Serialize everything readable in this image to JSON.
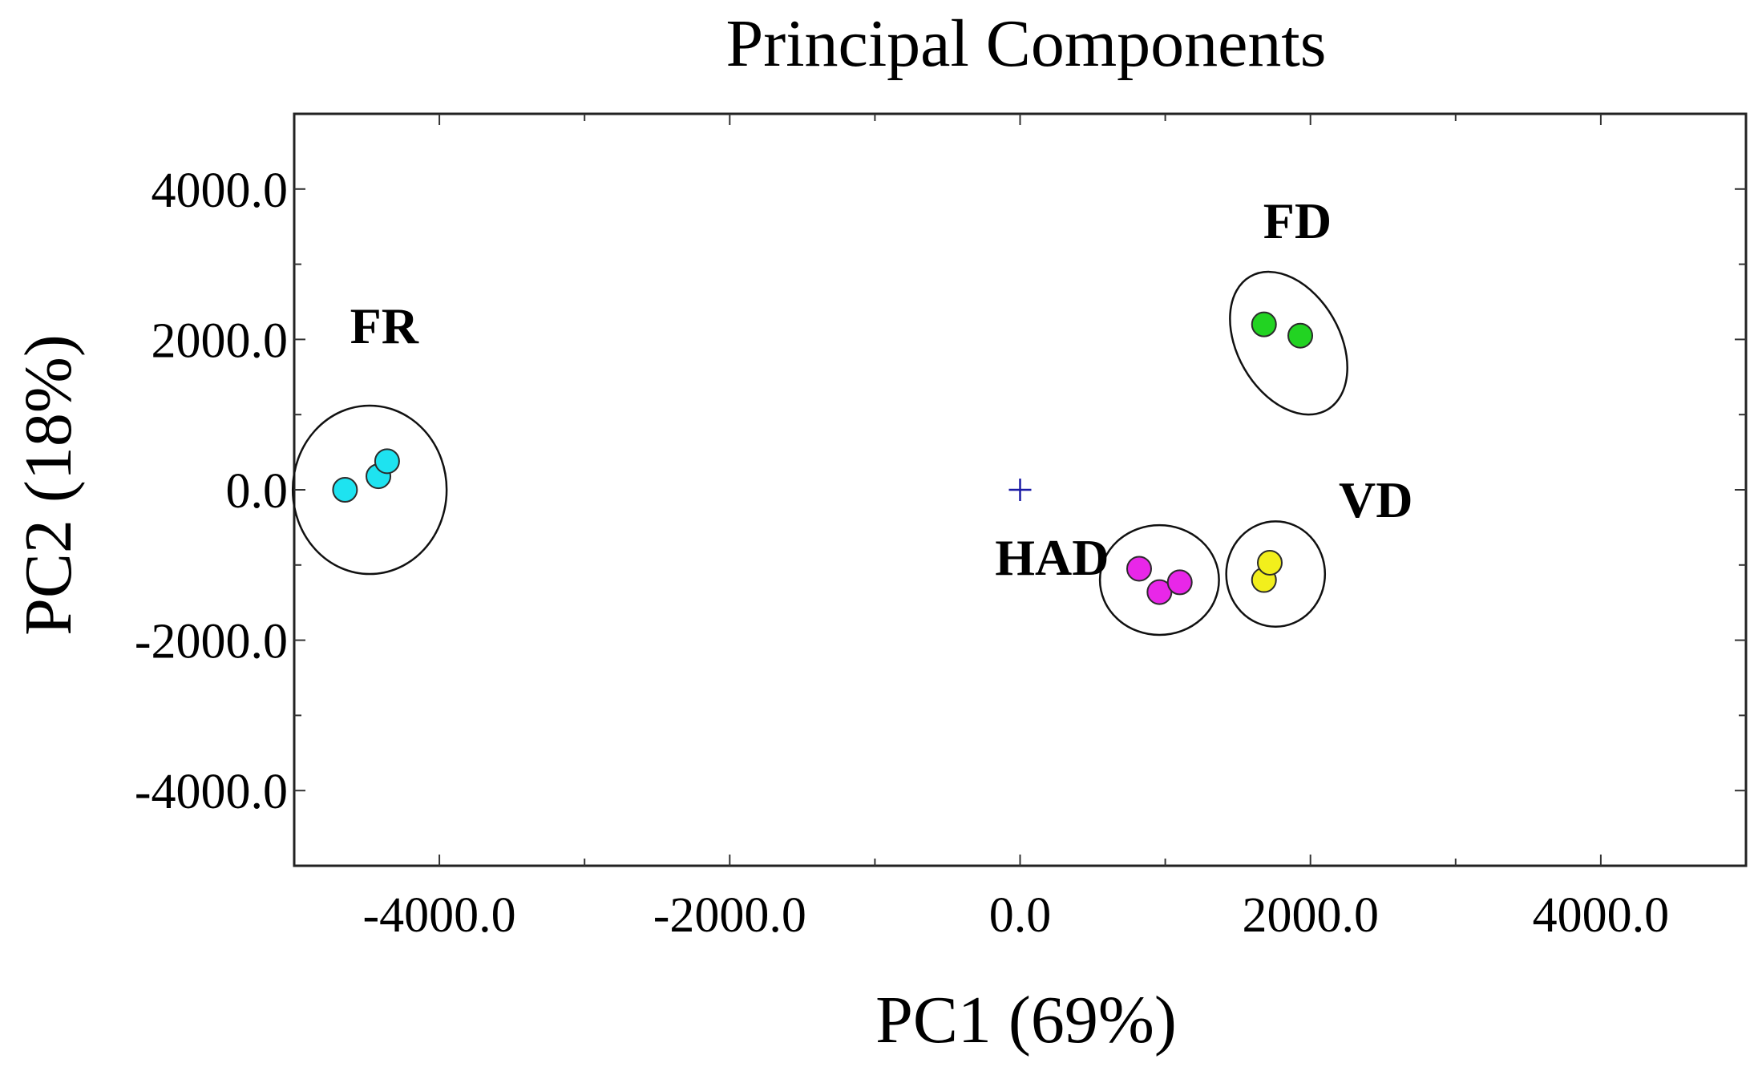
{
  "chart_data": {
    "type": "scatter",
    "title": "Principal Components",
    "xlabel": "PC1 (69%)",
    "ylabel": "PC2 (18%)",
    "xlim": [
      -5000,
      5000
    ],
    "ylim": [
      -5000,
      5000
    ],
    "x_ticks": [
      -4000,
      -2000,
      0,
      2000,
      4000
    ],
    "x_tick_labels": [
      "-4000.0",
      "-2000.0",
      "0.0",
      "2000.0",
      "4000.0"
    ],
    "y_ticks": [
      -4000,
      -2000,
      0,
      2000,
      4000
    ],
    "y_tick_labels": [
      "-4000.0",
      "-2000.0",
      "0.0",
      "2000.0",
      "4000.0"
    ],
    "x_minor_step": 1000,
    "y_minor_step": 1000,
    "grid": false,
    "origin_marker": {
      "x": 0,
      "y": 0,
      "symbol": "+",
      "color": "#1a1aa6"
    },
    "series": [
      {
        "name": "FR",
        "color": "#1ee3f0",
        "points": [
          {
            "x": -4650,
            "y": 0
          },
          {
            "x": -4420,
            "y": 180
          },
          {
            "x": -4360,
            "y": 380
          }
        ],
        "ellipse": {
          "cx": -4480,
          "cy": 0,
          "rx": 530,
          "ry": 1120,
          "rotation": 0
        },
        "label_pos": {
          "x": -4380,
          "y": 1950
        }
      },
      {
        "name": "FD",
        "color": "#22d322",
        "points": [
          {
            "x": 1680,
            "y": 2200
          },
          {
            "x": 1930,
            "y": 2050
          }
        ],
        "ellipse": {
          "cx": 1850,
          "cy": 1950,
          "rx": 530,
          "ry": 680,
          "rotation": 60
        },
        "label_pos": {
          "x": 1910,
          "y": 3350
        }
      },
      {
        "name": "HAD",
        "color": "#e827e8",
        "points": [
          {
            "x": 820,
            "y": -1050
          },
          {
            "x": 960,
            "y": -1360
          },
          {
            "x": 1100,
            "y": -1230
          }
        ],
        "ellipse": {
          "cx": 960,
          "cy": -1200,
          "rx": 410,
          "ry": 730,
          "rotation": 0
        },
        "label_pos": {
          "x": 220,
          "y": -1130
        }
      },
      {
        "name": "VD",
        "color": "#f2ef1c",
        "points": [
          {
            "x": 1680,
            "y": -1200
          },
          {
            "x": 1720,
            "y": -970
          }
        ],
        "ellipse": {
          "cx": 1760,
          "cy": -1120,
          "rx": 340,
          "ry": 700,
          "rotation": 0
        },
        "label_pos": {
          "x": 2450,
          "y": -360
        }
      }
    ]
  }
}
